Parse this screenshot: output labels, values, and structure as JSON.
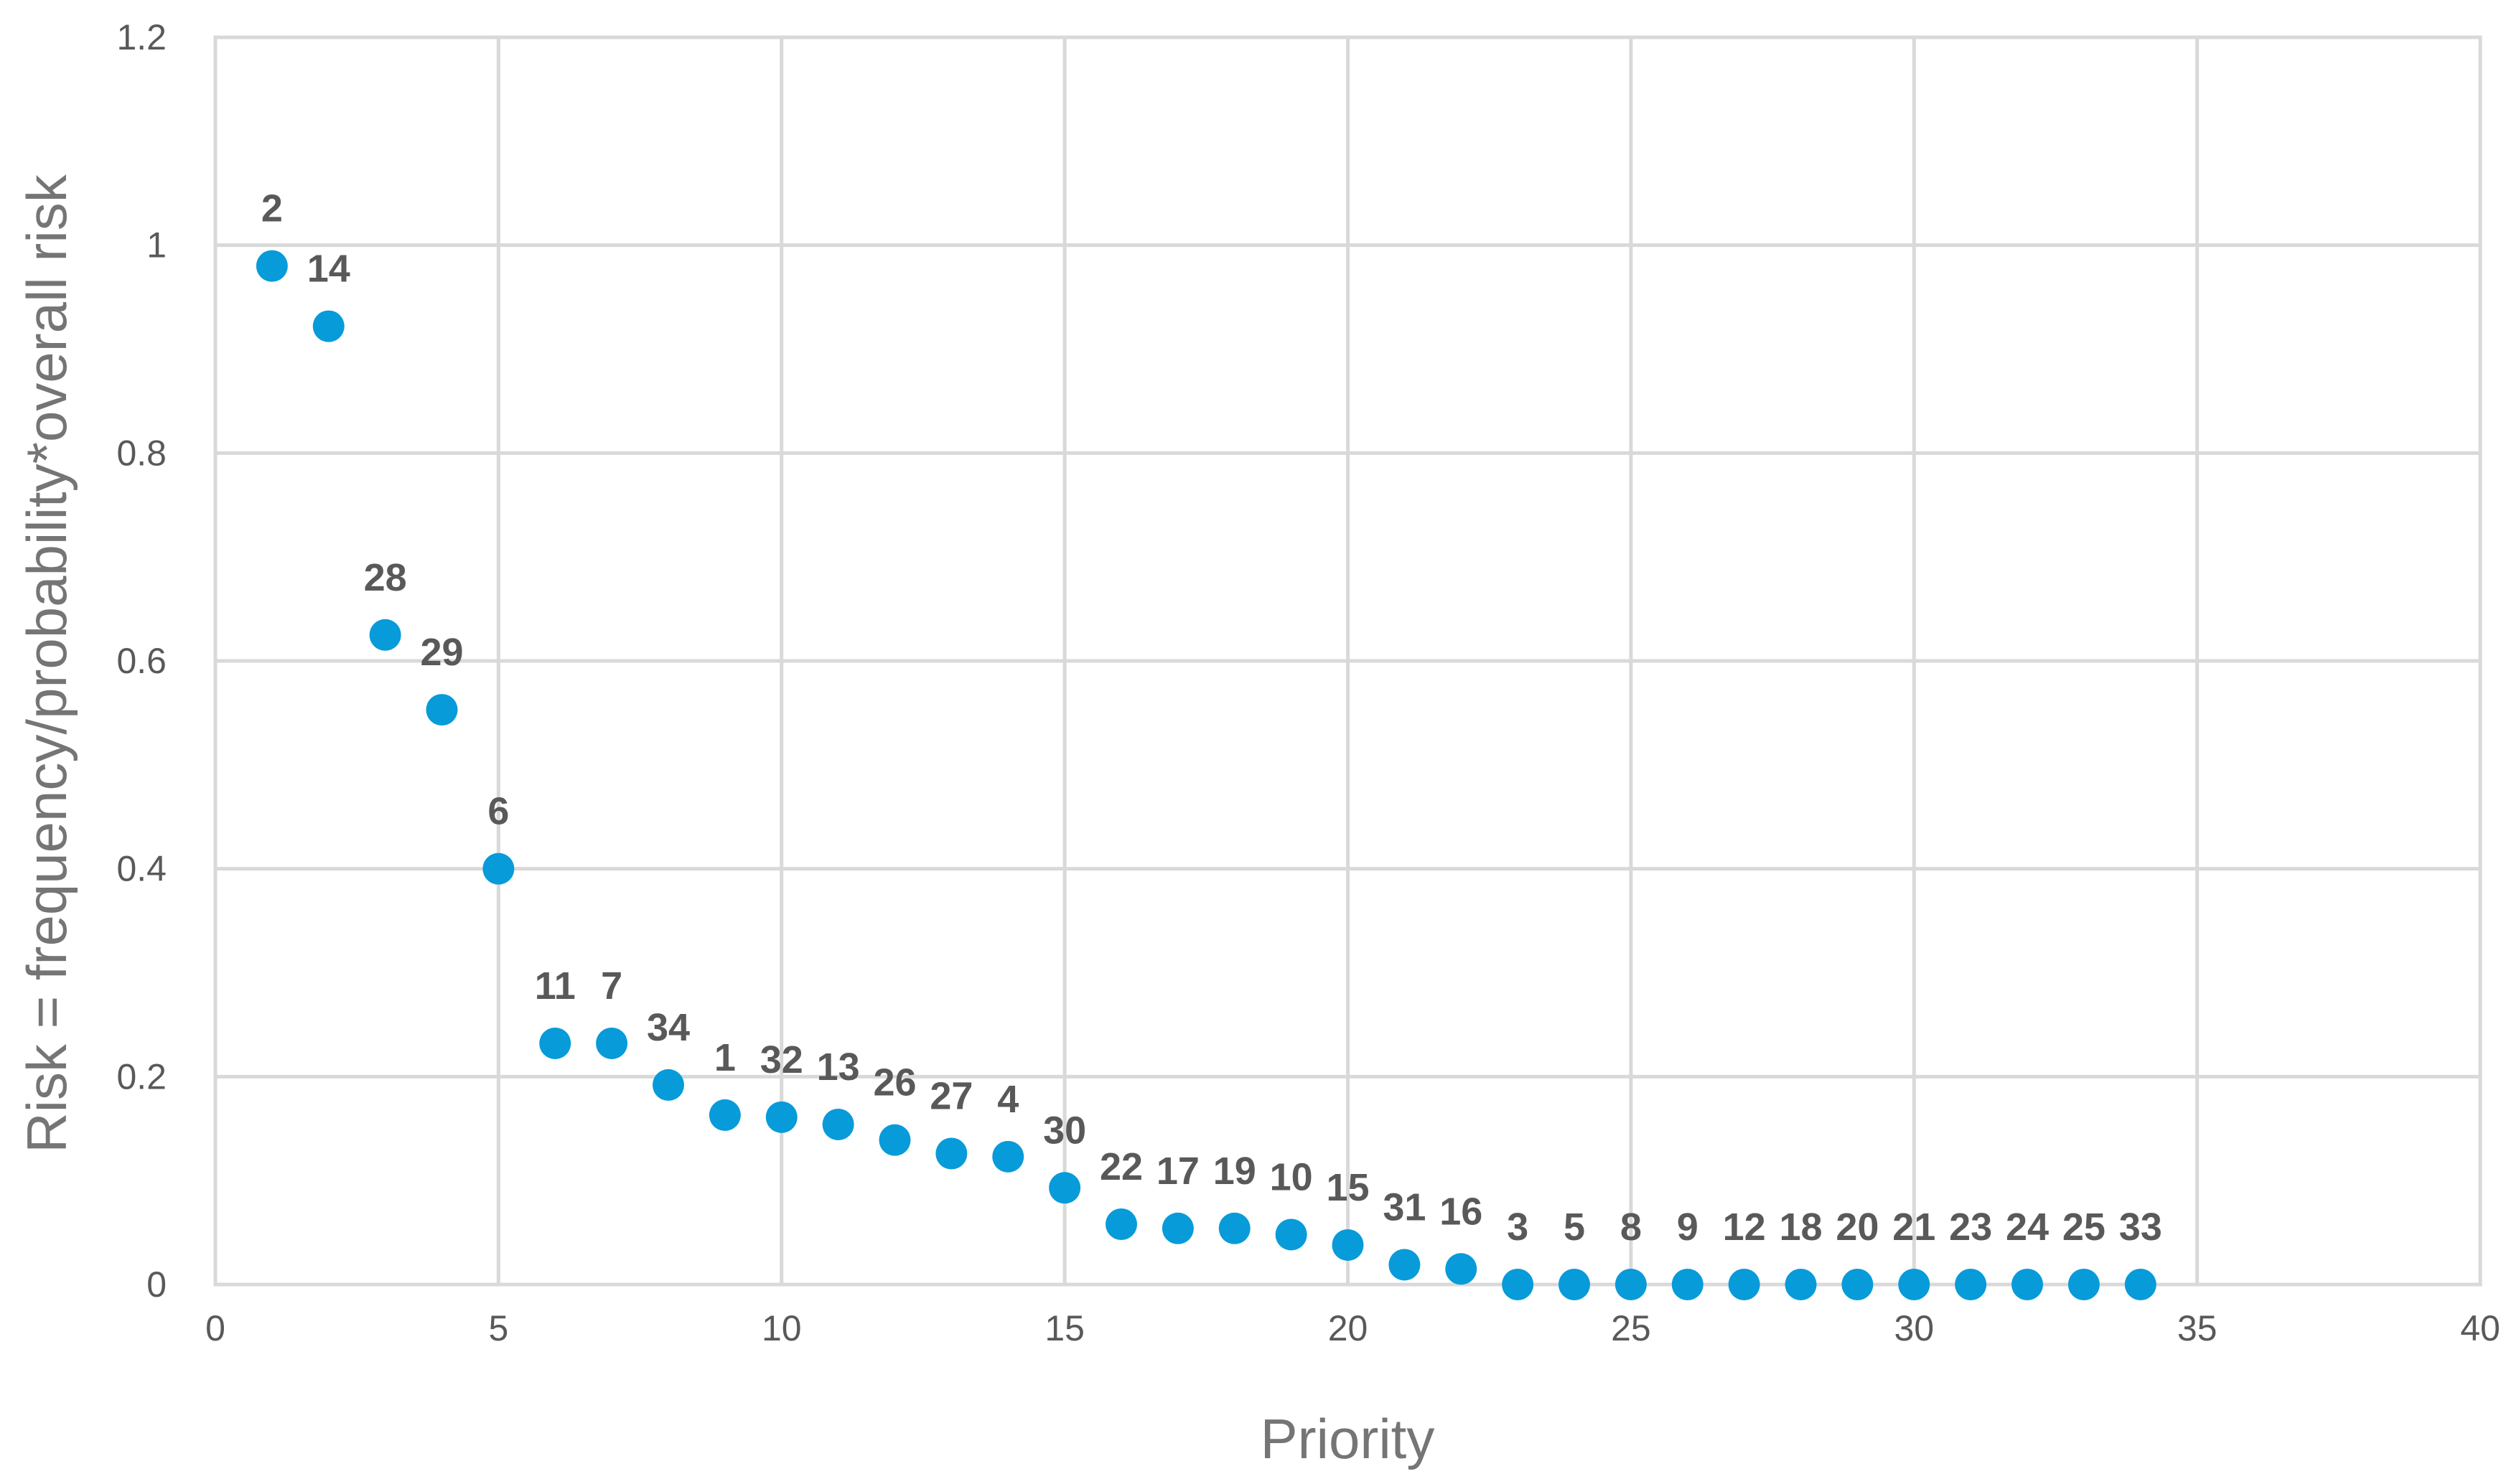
{
  "chart_data": {
    "type": "scatter",
    "title": "",
    "xlabel": "Priority",
    "ylabel": "Risk = frequency/probability*overall risk",
    "xlim": [
      0,
      40
    ],
    "ylim": [
      0,
      1.2
    ],
    "x_ticks": [
      "0",
      "5",
      "10",
      "15",
      "20",
      "25",
      "30",
      "35",
      "40"
    ],
    "y_ticks": [
      "0",
      "0.2",
      "0.4",
      "0.6",
      "0.8",
      "1",
      "1.2"
    ],
    "grid": true,
    "legend": "none",
    "colors": {
      "marker": "#079bd9",
      "grid": "#d9d9d9",
      "label": "#595959"
    },
    "points": [
      {
        "x": 1,
        "y": 0.98,
        "label": "2"
      },
      {
        "x": 2,
        "y": 0.922,
        "label": "14"
      },
      {
        "x": 3,
        "y": 0.625,
        "label": "28"
      },
      {
        "x": 4,
        "y": 0.553,
        "label": "29"
      },
      {
        "x": 5,
        "y": 0.4,
        "label": "6"
      },
      {
        "x": 6,
        "y": 0.232,
        "label": "11"
      },
      {
        "x": 7,
        "y": 0.232,
        "label": "7"
      },
      {
        "x": 8,
        "y": 0.192,
        "label": "34"
      },
      {
        "x": 9,
        "y": 0.163,
        "label": "1"
      },
      {
        "x": 10,
        "y": 0.161,
        "label": "32"
      },
      {
        "x": 11,
        "y": 0.154,
        "label": "13"
      },
      {
        "x": 12,
        "y": 0.139,
        "label": "26"
      },
      {
        "x": 13,
        "y": 0.126,
        "label": "27"
      },
      {
        "x": 14,
        "y": 0.123,
        "label": "4"
      },
      {
        "x": 15,
        "y": 0.093,
        "label": "30"
      },
      {
        "x": 16,
        "y": 0.058,
        "label": "22"
      },
      {
        "x": 17,
        "y": 0.054,
        "label": "17"
      },
      {
        "x": 18,
        "y": 0.054,
        "label": "19"
      },
      {
        "x": 19,
        "y": 0.048,
        "label": "10"
      },
      {
        "x": 20,
        "y": 0.038,
        "label": "15"
      },
      {
        "x": 21,
        "y": 0.019,
        "label": "31"
      },
      {
        "x": 22,
        "y": 0.015,
        "label": "16"
      },
      {
        "x": 23,
        "y": 0.0,
        "label": "3"
      },
      {
        "x": 24,
        "y": 0.0,
        "label": "5"
      },
      {
        "x": 25,
        "y": 0.0,
        "label": "8"
      },
      {
        "x": 26,
        "y": 0.0,
        "label": "9"
      },
      {
        "x": 27,
        "y": 0.0,
        "label": "12"
      },
      {
        "x": 28,
        "y": 0.0,
        "label": "18"
      },
      {
        "x": 29,
        "y": 0.0,
        "label": "20"
      },
      {
        "x": 30,
        "y": 0.0,
        "label": "21"
      },
      {
        "x": 31,
        "y": 0.0,
        "label": "23"
      },
      {
        "x": 32,
        "y": 0.0,
        "label": "24"
      },
      {
        "x": 33,
        "y": 0.0,
        "label": "25"
      },
      {
        "x": 34,
        "y": 0.0,
        "label": "33"
      }
    ]
  }
}
